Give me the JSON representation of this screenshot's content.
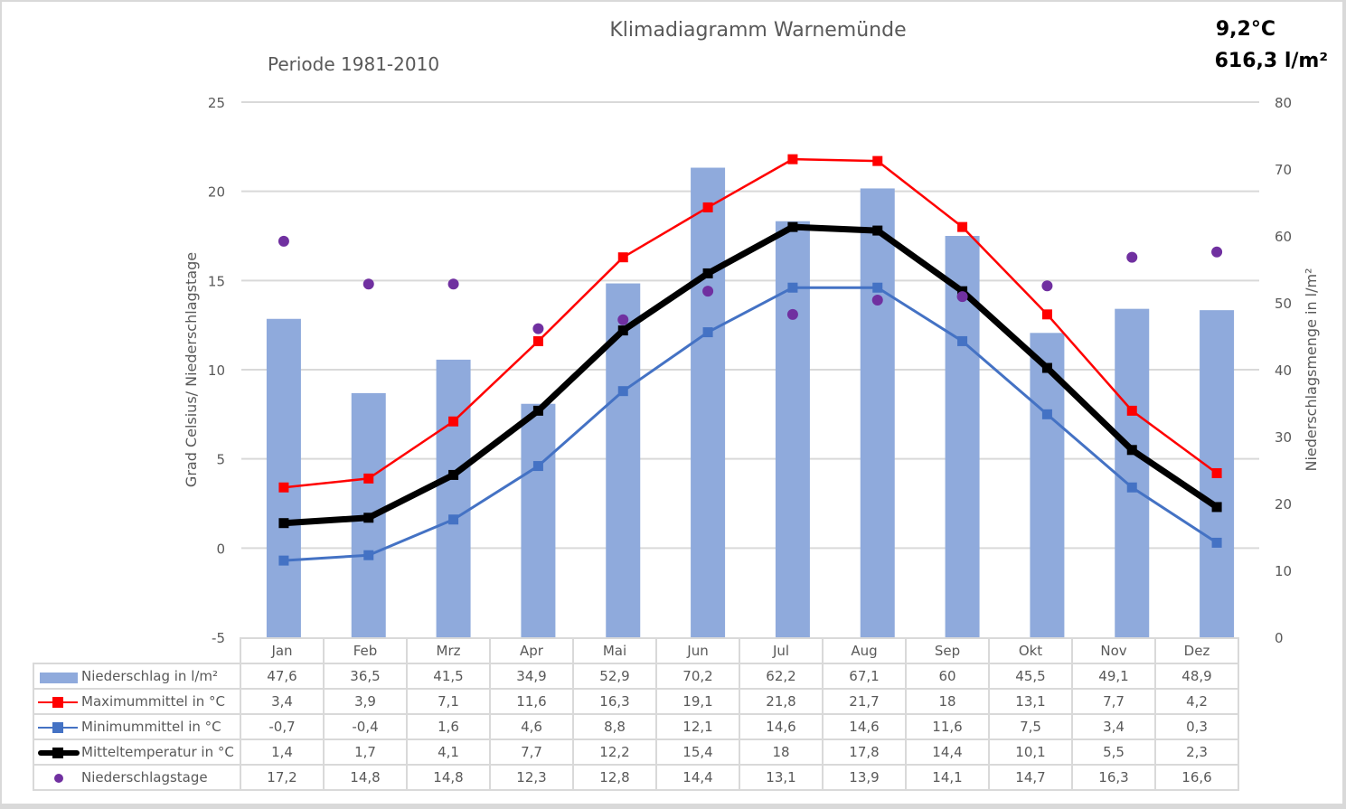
{
  "title": "Klimadiagramm Warnemünde",
  "subtitle": "Periode 1981-2010",
  "summary": {
    "mean_temperature": "9,2°C",
    "total_precipitation": "616,3 l/m²"
  },
  "colors": {
    "precipitation_bar": "#8faadc",
    "max_line": "#ff0000",
    "min_line": "#4472c4",
    "mean_line": "#000000",
    "rain_days_dot": "#7030a0",
    "grid": "#d9d9d9",
    "text": "#595959"
  },
  "chart_data": {
    "type": "bar",
    "title": "Klimadiagramm Warnemünde",
    "subtitle": "Periode 1981-2010",
    "categories": [
      "Jan",
      "Feb",
      "Mrz",
      "Apr",
      "Mai",
      "Jun",
      "Jul",
      "Aug",
      "Sep",
      "Okt",
      "Nov",
      "Dez"
    ],
    "left_axis": {
      "label": "Grad Celsius/ Niederschlagstage",
      "range": [
        -5,
        25
      ],
      "ticks": [
        "-5",
        "0",
        "5",
        "10",
        "15",
        "20",
        "25"
      ]
    },
    "right_axis": {
      "label": "Niederschlagsmenge in l/m²",
      "range": [
        0,
        80
      ],
      "ticks": [
        "0",
        "10",
        "20",
        "30",
        "40",
        "50",
        "60",
        "70",
        "80"
      ]
    },
    "grid": true,
    "legend": "data-table-bottom",
    "series": [
      {
        "name": "Niederschlag in l/m²",
        "type": "bar",
        "axis": "right",
        "values": [
          47.6,
          36.5,
          41.5,
          34.9,
          52.9,
          70.2,
          62.2,
          67.1,
          60,
          45.5,
          49.1,
          48.9
        ],
        "labels": [
          "47,6",
          "36,5",
          "41,5",
          "34,9",
          "52,9",
          "70,2",
          "62,2",
          "67,1",
          "60",
          "45,5",
          "49,1",
          "48,9"
        ]
      },
      {
        "name": "Maximummittel in °C",
        "type": "line",
        "axis": "left",
        "values": [
          3.4,
          3.9,
          7.1,
          11.6,
          16.3,
          19.1,
          21.8,
          21.7,
          18,
          13.1,
          7.7,
          4.2
        ],
        "labels": [
          "3,4",
          "3,9",
          "7,1",
          "11,6",
          "16,3",
          "19,1",
          "21,8",
          "21,7",
          "18",
          "13,1",
          "7,7",
          "4,2"
        ]
      },
      {
        "name": "Minimummittel in °C",
        "type": "line",
        "axis": "left",
        "values": [
          -0.7,
          -0.4,
          1.6,
          4.6,
          8.8,
          12.1,
          14.6,
          14.6,
          11.6,
          7.5,
          3.4,
          0.3
        ],
        "labels": [
          "-0,7",
          "-0,4",
          "1,6",
          "4,6",
          "8,8",
          "12,1",
          "14,6",
          "14,6",
          "11,6",
          "7,5",
          "3,4",
          "0,3"
        ]
      },
      {
        "name": "Mitteltemperatur in °C",
        "type": "line",
        "axis": "left",
        "values": [
          1.4,
          1.7,
          4.1,
          7.7,
          12.2,
          15.4,
          18,
          17.8,
          14.4,
          10.1,
          5.5,
          2.3
        ],
        "labels": [
          "1,4",
          "1,7",
          "4,1",
          "7,7",
          "12,2",
          "15,4",
          "18",
          "17,8",
          "14,4",
          "10,1",
          "5,5",
          "2,3"
        ]
      },
      {
        "name": "Niederschlagstage",
        "type": "scatter",
        "axis": "left",
        "values": [
          17.2,
          14.8,
          14.8,
          12.3,
          12.8,
          14.4,
          13.1,
          13.9,
          14.1,
          14.7,
          16.3,
          16.6
        ],
        "labels": [
          "17,2",
          "14,8",
          "14,8",
          "12,3",
          "12,8",
          "14,4",
          "13,1",
          "13,9",
          "14,1",
          "14,7",
          "16,3",
          "16,6"
        ]
      }
    ]
  }
}
